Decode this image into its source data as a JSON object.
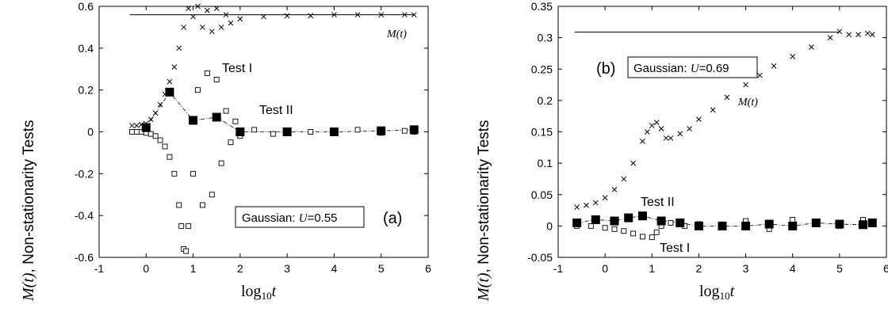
{
  "chart_data": [
    {
      "type": "scatter",
      "panel_letter": "(a)",
      "ylabel_prefix": "M(t)",
      "ylabel_rest": ", Non-stationarity Tests",
      "xlabel_base": "log",
      "xlabel_sub": "10",
      "xlabel_var": "t",
      "xlim": [
        -1,
        6
      ],
      "ylim": [
        -0.6,
        0.6
      ],
      "xticks": [
        "-1",
        "0",
        "1",
        "2",
        "3",
        "4",
        "5",
        "6"
      ],
      "yticks": [
        "-0.6",
        "-0.4",
        "-0.2",
        "0",
        "0.2",
        "0.4",
        "0.6"
      ],
      "box_prefix": "Gaussian: ",
      "box_u": "U",
      "box_value": "=0.55",
      "labels": {
        "m": "M(t)",
        "test1": "Test I",
        "test2": "Test II"
      },
      "hline": {
        "y": 0.56,
        "x": [
          -0.35,
          5.7
        ]
      },
      "series": [
        {
          "name": "M(t)",
          "marker": "x",
          "x": [
            -0.3,
            -0.2,
            -0.1,
            0.0,
            0.1,
            0.2,
            0.3,
            0.4,
            0.5,
            0.6,
            0.7,
            0.8,
            0.9,
            1.0,
            1.1,
            1.2,
            1.3,
            1.4,
            1.5,
            1.6,
            1.7,
            1.8,
            2.0,
            2.5,
            3.0,
            3.5,
            4.0,
            4.5,
            5.0,
            5.5,
            5.7
          ],
          "y": [
            0.03,
            0.03,
            0.035,
            0.04,
            0.06,
            0.09,
            0.13,
            0.18,
            0.24,
            0.31,
            0.4,
            0.5,
            0.59,
            0.55,
            0.6,
            0.5,
            0.58,
            0.48,
            0.59,
            0.5,
            0.56,
            0.52,
            0.54,
            0.55,
            0.555,
            0.555,
            0.56,
            0.56,
            0.56,
            0.56,
            0.56
          ]
        },
        {
          "name": "Test I",
          "marker": "open-square",
          "x": [
            -0.3,
            -0.2,
            -0.1,
            0.0,
            0.1,
            0.2,
            0.3,
            0.4,
            0.5,
            0.6,
            0.7,
            0.75,
            0.8,
            0.85,
            0.9,
            1.0,
            1.1,
            1.2,
            1.3,
            1.4,
            1.5,
            1.6,
            1.7,
            1.8,
            1.9,
            2.0,
            2.3,
            2.7,
            3.0,
            3.5,
            4.0,
            4.5,
            5.0,
            5.5,
            5.7
          ],
          "y": [
            0.0,
            0.0,
            0.0,
            -0.005,
            -0.01,
            -0.02,
            -0.04,
            -0.07,
            -0.12,
            -0.2,
            -0.35,
            -0.45,
            -0.56,
            -0.57,
            -0.45,
            -0.2,
            0.2,
            -0.35,
            0.28,
            -0.3,
            0.25,
            -0.15,
            0.1,
            -0.05,
            0.05,
            -0.02,
            0.01,
            -0.01,
            0.0,
            0.0,
            0.0,
            0.01,
            -0.005,
            0.005,
            0.0
          ]
        },
        {
          "name": "Test II",
          "marker": "filled-square",
          "x": [
            0.0,
            0.5,
            1.0,
            1.5,
            2.0,
            3.0,
            4.0,
            5.0,
            5.7
          ],
          "y": [
            0.02,
            0.19,
            0.055,
            0.07,
            0.0,
            0.0,
            0.0,
            0.005,
            0.01
          ]
        }
      ]
    },
    {
      "type": "scatter",
      "panel_letter": "(b)",
      "ylabel_prefix": "M(t)",
      "ylabel_rest": ", Non-stationarity Tests",
      "xlabel_base": "log",
      "xlabel_sub": "10",
      "xlabel_var": "t",
      "xlim": [
        -1,
        6
      ],
      "ylim": [
        -0.05,
        0.35
      ],
      "xticks": [
        "-1",
        "0",
        "1",
        "2",
        "3",
        "4",
        "5",
        "6"
      ],
      "yticks": [
        "-0.05",
        "0",
        "0.05",
        "0.1",
        "0.15",
        "0.2",
        "0.25",
        "0.3",
        "0.35"
      ],
      "box_prefix": "Gaussian: ",
      "box_u": "U",
      "box_value": "=0.69",
      "labels": {
        "m": "M(t)",
        "test1": "Test I",
        "test2": "Test II"
      },
      "hline": {
        "y": 0.309,
        "x": [
          -0.65,
          5.0
        ]
      },
      "series": [
        {
          "name": "M(t)",
          "marker": "x",
          "x": [
            -0.6,
            -0.4,
            -0.2,
            0.0,
            0.2,
            0.4,
            0.6,
            0.8,
            0.9,
            1.0,
            1.1,
            1.2,
            1.3,
            1.4,
            1.6,
            1.8,
            2.0,
            2.3,
            2.6,
            3.0,
            3.3,
            3.6,
            4.0,
            4.4,
            4.8,
            5.0,
            5.2,
            5.4,
            5.6,
            5.7
          ],
          "y": [
            0.03,
            0.033,
            0.037,
            0.045,
            0.058,
            0.075,
            0.1,
            0.135,
            0.15,
            0.16,
            0.165,
            0.155,
            0.14,
            0.14,
            0.147,
            0.155,
            0.17,
            0.185,
            0.205,
            0.225,
            0.24,
            0.255,
            0.27,
            0.285,
            0.3,
            0.31,
            0.305,
            0.305,
            0.307,
            0.305
          ]
        },
        {
          "name": "Test I",
          "marker": "open-square",
          "x": [
            -0.6,
            -0.3,
            0.0,
            0.2,
            0.4,
            0.6,
            0.8,
            1.0,
            1.1,
            1.2,
            1.4,
            1.7,
            2.0,
            2.5,
            3.0,
            3.5,
            4.0,
            4.5,
            5.0,
            5.5,
            5.7
          ],
          "y": [
            0.0,
            0.0,
            -0.003,
            -0.005,
            -0.008,
            -0.012,
            -0.017,
            -0.018,
            -0.01,
            0.0,
            0.005,
            0.0,
            0.003,
            0.0,
            0.008,
            -0.005,
            0.01,
            0.003,
            0.0,
            0.01,
            0.005
          ]
        },
        {
          "name": "Test II",
          "marker": "filled-square",
          "x": [
            -0.6,
            -0.2,
            0.2,
            0.5,
            0.8,
            1.2,
            1.6,
            2.0,
            2.5,
            3.0,
            3.5,
            4.0,
            4.5,
            5.0,
            5.5,
            5.7
          ],
          "y": [
            0.005,
            0.01,
            0.008,
            0.013,
            0.016,
            0.008,
            0.005,
            0.0,
            0.0,
            0.0,
            0.003,
            0.0,
            0.005,
            0.003,
            0.002,
            0.005
          ]
        }
      ]
    }
  ]
}
